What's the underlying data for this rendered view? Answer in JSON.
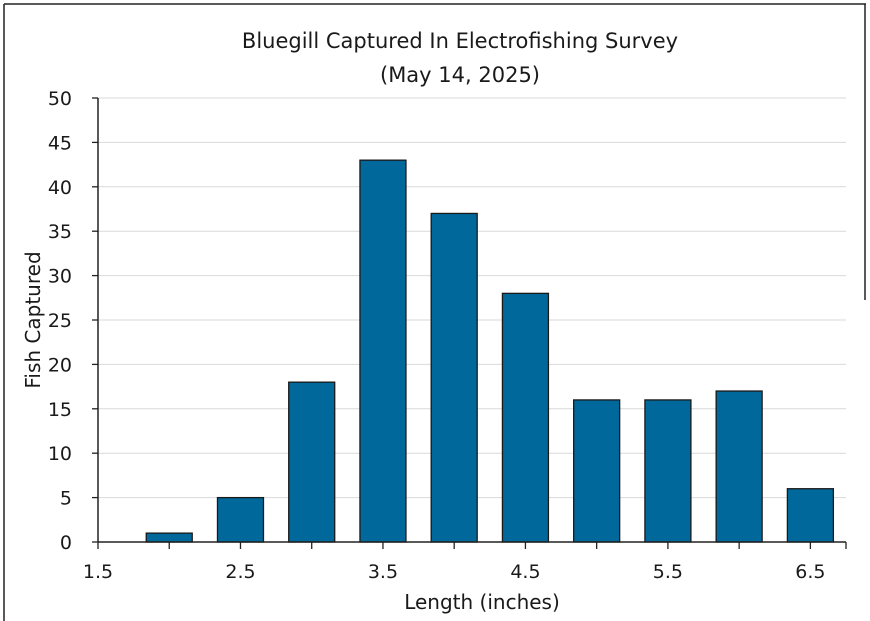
{
  "chart_data": {
    "type": "bar",
    "title": "Bluegill Captured In Electrofishing Survey",
    "subtitle": "(May 14, 2025)",
    "xlabel": "Length (inches)",
    "ylabel": "Fish Captured",
    "x": [
      2.0,
      2.5,
      3.0,
      3.5,
      4.0,
      4.5,
      5.0,
      5.5,
      6.0,
      6.5
    ],
    "values": [
      1,
      5,
      18,
      43,
      37,
      28,
      16,
      16,
      17,
      6
    ],
    "xlim": [
      1.5,
      6.75
    ],
    "ylim": [
      0,
      50
    ],
    "xticks": [
      "1.5",
      "2.5",
      "3.5",
      "4.5",
      "5.5",
      "6.5"
    ],
    "yticks": [
      "0",
      "5",
      "10",
      "15",
      "20",
      "25",
      "30",
      "35",
      "40",
      "45",
      "50"
    ],
    "grid": true,
    "bar_color": "#00689a"
  }
}
